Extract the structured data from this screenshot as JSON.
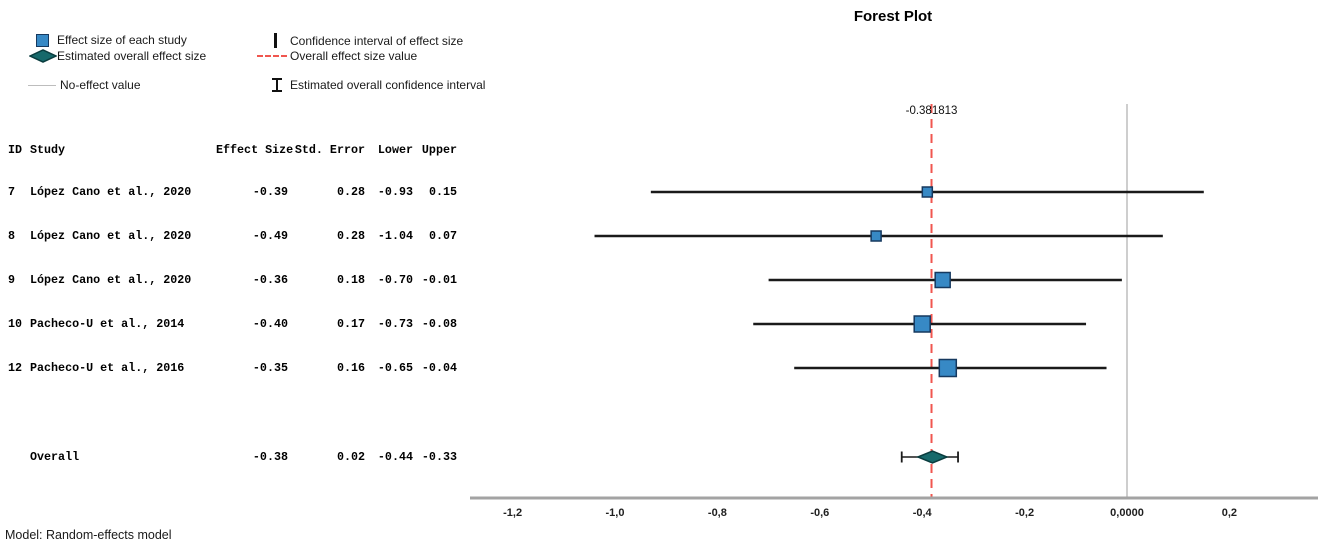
{
  "title": "Forest Plot",
  "legend": {
    "items": [
      {
        "label": "Effect size of each study"
      },
      {
        "label": "Estimated overall effect size"
      },
      {
        "label": "No-effect value"
      },
      {
        "label": "Confidence interval of effect size"
      },
      {
        "label": "Overall effect size value"
      },
      {
        "label": "Estimated overall confidence interval"
      }
    ]
  },
  "table": {
    "headers": {
      "id": "ID",
      "study": "Study",
      "effect": "Effect Size",
      "std_error": "Std. Error",
      "lower": "Lower",
      "upper": "Upper"
    }
  },
  "chart_data": {
    "type": "scatter",
    "variant": "forest-plot",
    "title": "Forest Plot",
    "x_axis": {
      "range": [
        -1.28,
        0.37
      ],
      "ticks": [
        {
          "label": "-1,2",
          "value": -1.2
        },
        {
          "label": "-1,0",
          "value": -1.0
        },
        {
          "label": "-0,8",
          "value": -0.8
        },
        {
          "label": "-0,6",
          "value": -0.6
        },
        {
          "label": "-0,4",
          "value": -0.4
        },
        {
          "label": "-0,2",
          "value": -0.2
        },
        {
          "label": "0,0000",
          "value": 0
        },
        {
          "label": "0,2",
          "value": 0.2
        }
      ]
    },
    "no_effect_value": 0,
    "overall_effect_line": {
      "value": -0.381813,
      "label": "-0.381813"
    },
    "studies": [
      {
        "id": "7",
        "study": "López Cano et al., 2020",
        "effect_size": -0.39,
        "std_error": 0.28,
        "lower": -0.93,
        "upper": 0.15
      },
      {
        "id": "8",
        "study": "López Cano et al., 2020",
        "effect_size": -0.49,
        "std_error": 0.28,
        "lower": -1.04,
        "upper": 0.07
      },
      {
        "id": "9",
        "study": "López Cano et al., 2020",
        "effect_size": -0.36,
        "std_error": 0.18,
        "lower": -0.7,
        "upper": -0.01
      },
      {
        "id": "10",
        "study": "Pacheco-U et al., 2014",
        "effect_size": -0.4,
        "std_error": 0.17,
        "lower": -0.73,
        "upper": -0.08
      },
      {
        "id": "12",
        "study": "Pacheco-U et al., 2016",
        "effect_size": -0.35,
        "std_error": 0.16,
        "lower": -0.65,
        "upper": -0.04
      }
    ],
    "overall": {
      "label": "Overall",
      "effect_size": -0.38,
      "std_error": 0.02,
      "lower": -0.44,
      "upper": -0.33
    }
  },
  "footer": {
    "model_note": "Model: Random-effects model"
  },
  "colors": {
    "study_marker": "#3789c5",
    "study_marker_border": "#16395f",
    "overall_marker": "#17696b",
    "overall_marker_border": "#0a3c3e",
    "overall_effect_line": "#f0564f",
    "no_effect_line": "#c9c9c9",
    "axis": "#a3a3a3",
    "ci_line": "#1a1a1a"
  }
}
